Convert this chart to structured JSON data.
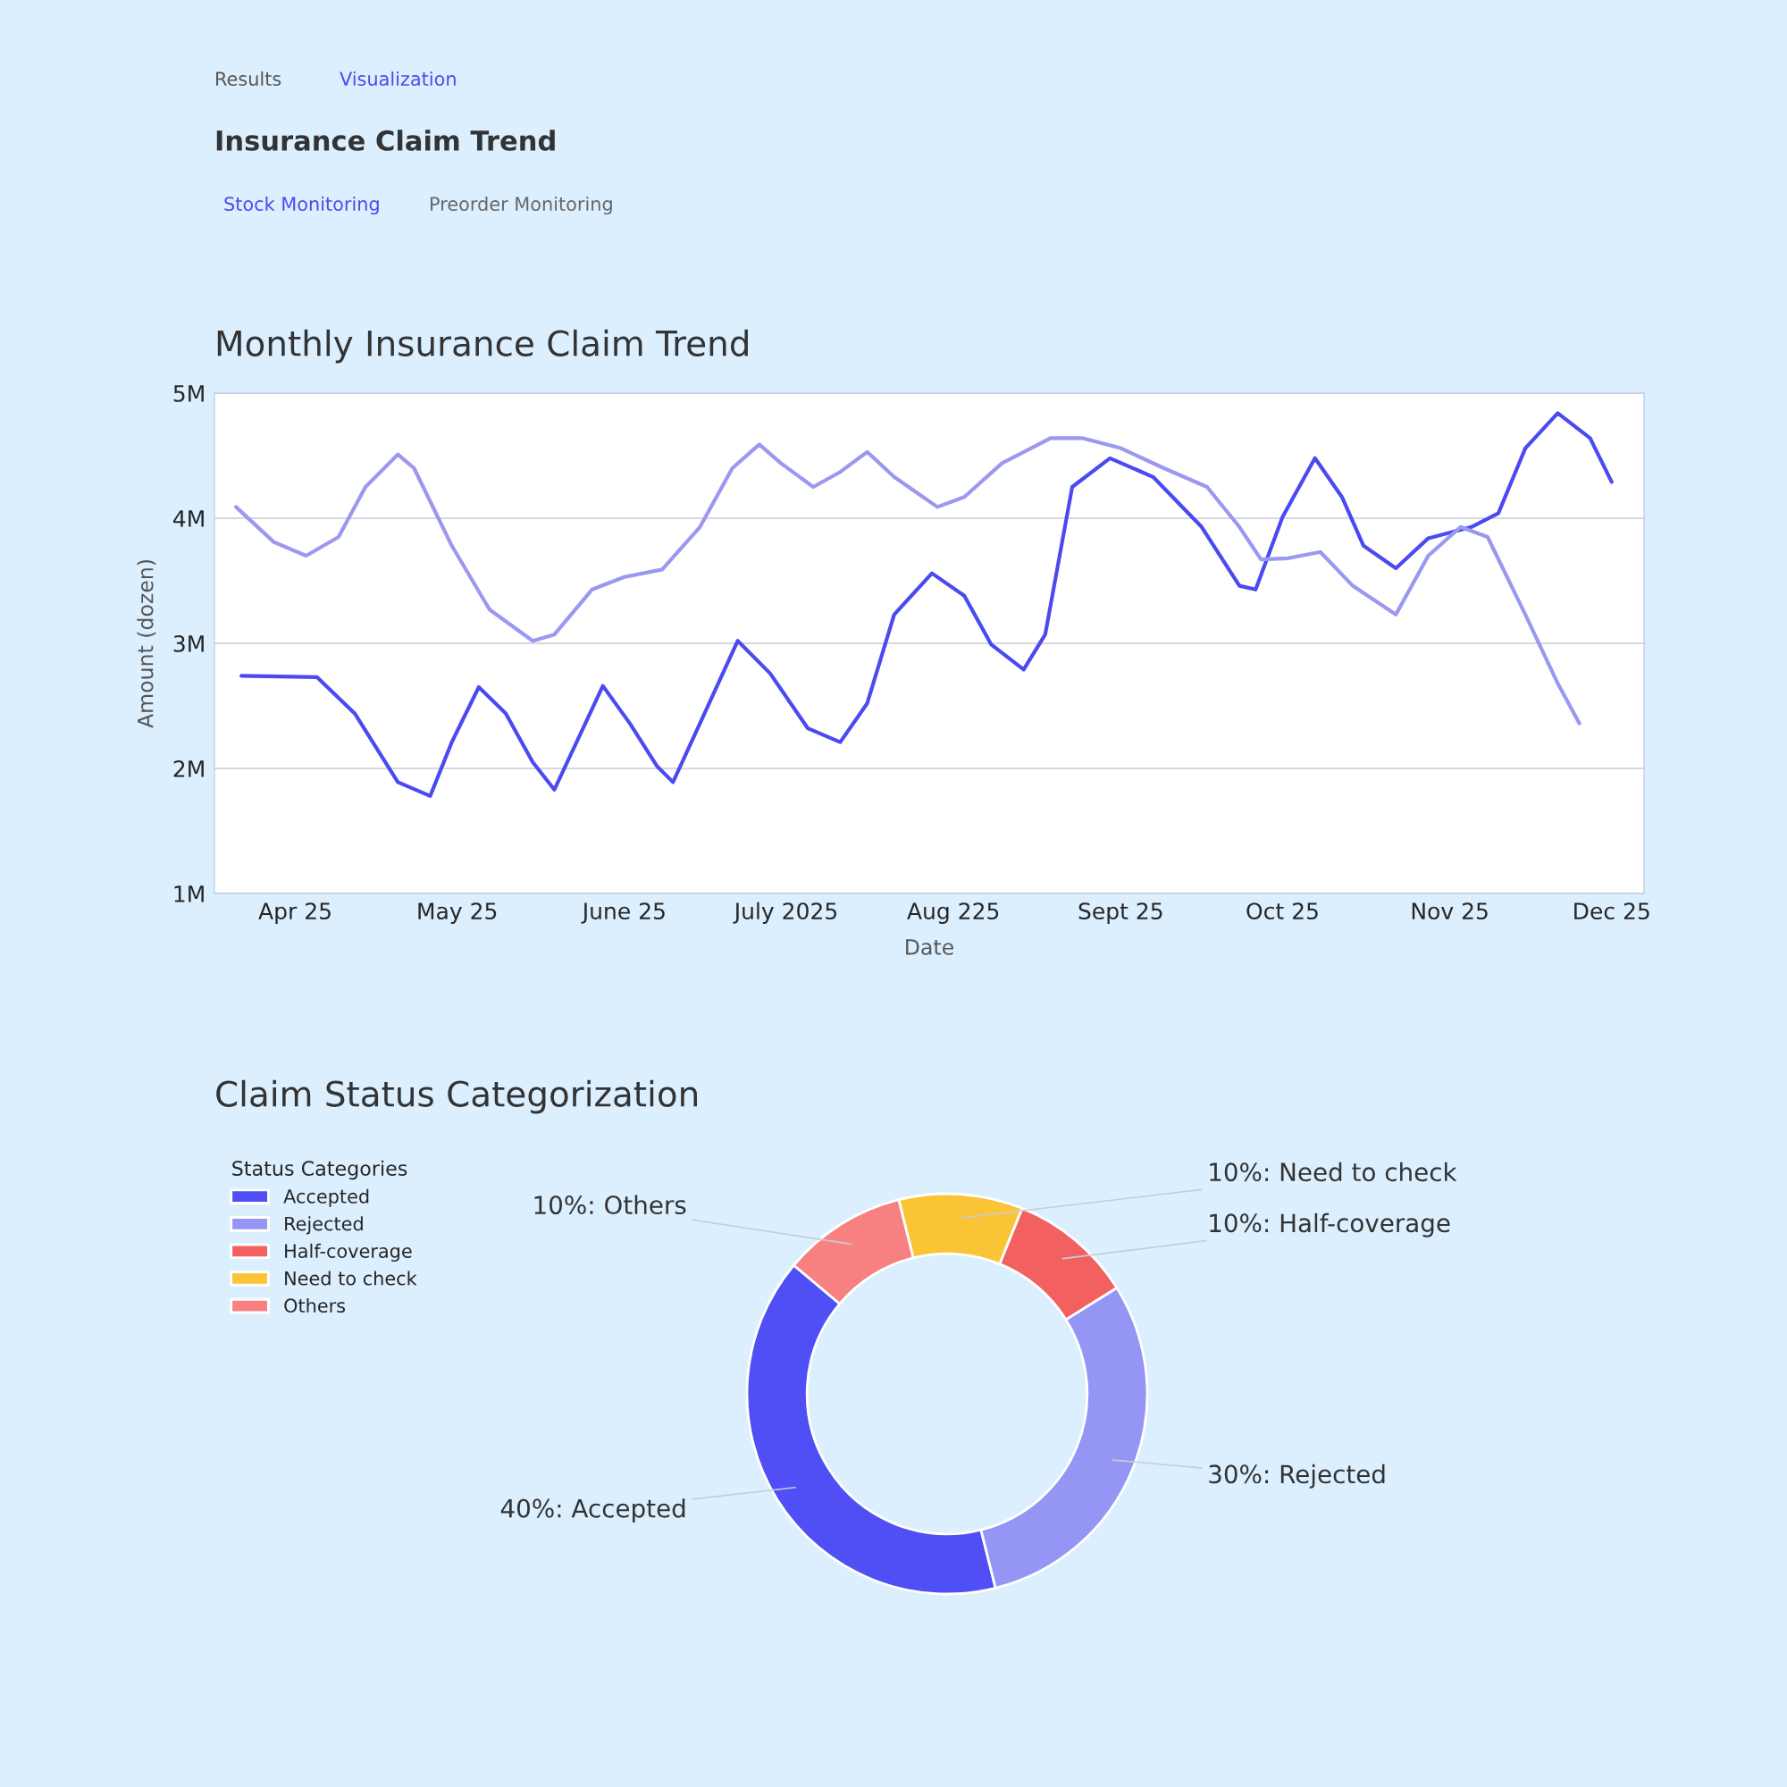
{
  "chart_data": [
    {
      "type": "line",
      "title": "Monthly Insurance Claim Trend",
      "xlabel": "Date",
      "ylabel": "Amount (dozen)",
      "annotations": [
        "Results",
        "Visualization",
        "Insurance Claim Trend",
        "Stock Monitoring",
        "Preorder Monitoring"
      ],
      "xlim": [
        "2025-03-17",
        "2025-12-07"
      ],
      "xticks": [
        {
          "value": "2025-04-01",
          "label": "Apr 25"
        },
        {
          "value": "2025-05-01",
          "label": "May 25"
        },
        {
          "value": "2025-06-01",
          "label": "June 25"
        },
        {
          "value": "2025-07-01",
          "label": "July 2025"
        },
        {
          "value": "2025-08-01",
          "label": "Aug 225"
        },
        {
          "value": "2025-09-01",
          "label": "Sept 25"
        },
        {
          "value": "2025-10-01",
          "label": "Oct 25"
        },
        {
          "value": "2025-11-01",
          "label": "Nov 25"
        },
        {
          "value": "2025-12-01",
          "label": "Dec 25"
        }
      ],
      "ylim": [
        1,
        5
      ],
      "yticks": [
        {
          "value": 1,
          "label": "1M"
        },
        {
          "value": 2,
          "label": "2M"
        },
        {
          "value": 3,
          "label": "3M"
        },
        {
          "value": 4,
          "label": "4M"
        },
        {
          "value": 5,
          "label": "5M"
        }
      ],
      "grid": "y",
      "line_style": "solid",
      "series": [
        {
          "color": "#4b4af0",
          "x": [
            "2025-03-22",
            "2025-04-05",
            "2025-04-12",
            "2025-04-20",
            "2025-04-26",
            "2025-04-30",
            "2025-05-05",
            "2025-05-10",
            "2025-05-15",
            "2025-05-19",
            "2025-05-24",
            "2025-05-28",
            "2025-06-02",
            "2025-06-07",
            "2025-06-10",
            "2025-06-15",
            "2025-06-22",
            "2025-06-28",
            "2025-07-05",
            "2025-07-11",
            "2025-07-16",
            "2025-07-21",
            "2025-07-28",
            "2025-08-03",
            "2025-08-08",
            "2025-08-14",
            "2025-08-18",
            "2025-08-23",
            "2025-08-30",
            "2025-09-07",
            "2025-09-16",
            "2025-09-23",
            "2025-09-26",
            "2025-10-01",
            "2025-10-07",
            "2025-10-12",
            "2025-10-16",
            "2025-10-22",
            "2025-10-28",
            "2025-11-05",
            "2025-11-10",
            "2025-11-15",
            "2025-11-21",
            "2025-11-27",
            "2025-12-01"
          ],
          "values": [
            2.74,
            2.73,
            2.44,
            1.89,
            1.78,
            2.21,
            2.65,
            2.44,
            2.05,
            1.83,
            2.29,
            2.66,
            2.36,
            2.02,
            1.89,
            2.36,
            3.02,
            2.76,
            2.32,
            2.21,
            2.52,
            3.23,
            3.56,
            3.38,
            2.99,
            2.79,
            3.07,
            4.25,
            4.48,
            4.33,
            3.93,
            3.46,
            3.43,
            4.01,
            4.48,
            4.17,
            3.78,
            3.6,
            3.84,
            3.93,
            4.04,
            4.56,
            4.84,
            4.64,
            4.29
          ]
        },
        {
          "color": "#9a98f0",
          "x": [
            "2025-03-21",
            "2025-03-28",
            "2025-04-03",
            "2025-04-09",
            "2025-04-14",
            "2025-04-20",
            "2025-04-23",
            "2025-04-30",
            "2025-05-07",
            "2025-05-15",
            "2025-05-19",
            "2025-05-26",
            "2025-06-01",
            "2025-06-08",
            "2025-06-15",
            "2025-06-21",
            "2025-06-26",
            "2025-06-30",
            "2025-07-06",
            "2025-07-11",
            "2025-07-16",
            "2025-07-21",
            "2025-07-29",
            "2025-08-03",
            "2025-08-10",
            "2025-08-19",
            "2025-08-25",
            "2025-09-01",
            "2025-09-09",
            "2025-09-17",
            "2025-09-23",
            "2025-09-27",
            "2025-10-02",
            "2025-10-08",
            "2025-10-14",
            "2025-10-22",
            "2025-10-28",
            "2025-11-03",
            "2025-11-08",
            "2025-11-15",
            "2025-11-21",
            "2025-11-25"
          ],
          "values": [
            4.09,
            3.81,
            3.7,
            3.85,
            4.25,
            4.51,
            4.4,
            3.78,
            3.27,
            3.02,
            3.07,
            3.43,
            3.53,
            3.59,
            3.93,
            4.4,
            4.59,
            4.44,
            4.25,
            4.37,
            4.53,
            4.33,
            4.09,
            4.17,
            4.44,
            4.64,
            4.64,
            4.56,
            4.4,
            4.25,
            3.93,
            3.67,
            3.68,
            3.73,
            3.46,
            3.23,
            3.7,
            3.93,
            3.85,
            3.23,
            2.68,
            2.36
          ]
        }
      ]
    },
    {
      "type": "donut",
      "title": "Claim Status Categorization",
      "legend_title": "Status Categories",
      "legend": "left",
      "categories": [
        "Accepted",
        "Rejected",
        "Half-coverage",
        "Need to check",
        "Others"
      ],
      "values": [
        40,
        30,
        10,
        10,
        10
      ],
      "colors": [
        "#4f4ff5",
        "#9595f5",
        "#f26060",
        "#f9c435",
        "#f78080"
      ],
      "value_labels": [
        "40%: Accepted",
        "30%: Rejected",
        "10%: Half-coverage",
        "10%: Need to check",
        "10%: Others"
      ]
    }
  ]
}
